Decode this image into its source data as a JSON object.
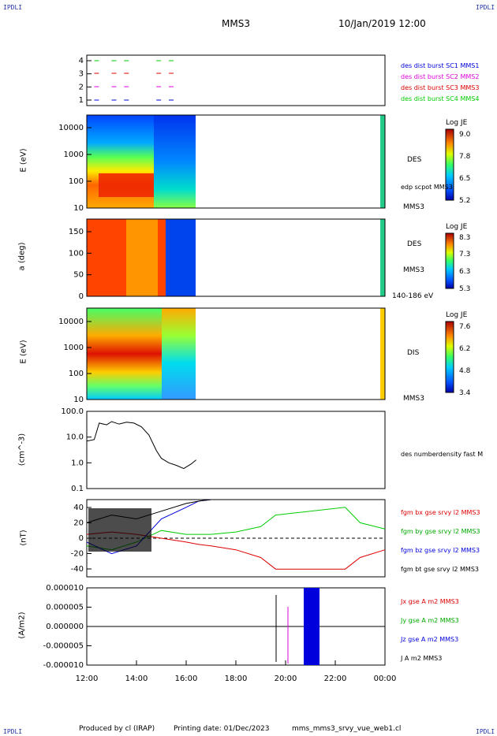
{
  "header": {
    "corner_tl": "IPDLI",
    "corner_tr": "IPDLI",
    "corner_bl": "IPDLI",
    "corner_br": "IPDLI",
    "mission": "MMS3",
    "date": "10/Jan/2019 12:00"
  },
  "footer": {
    "produced": "Produced by cl (IRAP)",
    "printing": "Printing date: 01/Dec/2023",
    "file": "mms_mms3_srvy_vue_web1.cl"
  },
  "time_axis": {
    "ticks": [
      "12:00",
      "14:00",
      "16:00",
      "18:00",
      "20:00",
      "22:00",
      "00:00"
    ],
    "start_hour": 12,
    "end_hour": 24
  },
  "colors": {
    "red": "#dd0000",
    "green": "#00cc00",
    "blue": "#0000dd",
    "magenta": "#dd00dd",
    "black": "#000000"
  },
  "chart_data": [
    {
      "type": "line",
      "name": "burst-availability",
      "yticks": [
        "1",
        "2",
        "3",
        "4"
      ],
      "legend": [
        "des dist burst SC1 MMS1",
        "des dist burst SC2 MMS2",
        "des dist burst SC3 MMS3",
        "des dist burst SC4 MMS4"
      ],
      "legend_colors": [
        "#0000dd",
        "#dd00dd",
        "#dd0000",
        "#00cc00"
      ],
      "segments_hours": [
        [
          12.3,
          12.6
        ],
        [
          13.0,
          13.2
        ],
        [
          13.5,
          13.8
        ],
        [
          14.8,
          15.1
        ],
        [
          15.3,
          15.5
        ]
      ]
    },
    {
      "type": "heatmap",
      "name": "des-energy-spectrogram",
      "ylabel": "E (eV)",
      "yticks": [
        "10",
        "100",
        "1000",
        "10000"
      ],
      "side_label": "DES",
      "side_label2": "edp scpot MMS3",
      "side_label3": "MMS3",
      "colorbar": {
        "title": "Log JE",
        "ticks": [
          "9.0",
          "7.8",
          "6.5",
          "5.2"
        ]
      }
    },
    {
      "type": "heatmap",
      "name": "des-pitch-angle",
      "ylabel": "a (deg)",
      "yticks": [
        "0",
        "50",
        "100",
        "150"
      ],
      "side_label": "DES",
      "side_label2": "MMS3",
      "side_label3": "140-186 eV",
      "colorbar": {
        "title": "Log JE",
        "ticks": [
          "8.3",
          "7.3",
          "6.3",
          "5.3"
        ]
      }
    },
    {
      "type": "heatmap",
      "name": "dis-energy-spectrogram",
      "ylabel": "E (eV)",
      "yticks": [
        "10",
        "100",
        "1000",
        "10000"
      ],
      "side_label": "DIS",
      "side_label2": "MMS3",
      "colorbar": {
        "title": "Log JE",
        "ticks": [
          "7.6",
          "6.2",
          "4.8",
          "3.4"
        ]
      }
    },
    {
      "type": "line",
      "name": "number-density",
      "ylabel": "(cm^-3)",
      "yticks": [
        "0.1",
        "1.0",
        "10.0",
        "100.0"
      ],
      "legend": [
        "des numberdensity fast M"
      ],
      "x_hours": [
        12.0,
        12.3,
        12.5,
        12.8,
        13.0,
        13.3,
        13.6,
        13.9,
        14.2,
        14.5,
        14.8,
        15.0,
        15.3,
        15.6,
        15.9,
        16.2,
        16.4
      ],
      "y_values": [
        7,
        8,
        35,
        30,
        40,
        32,
        38,
        35,
        25,
        12,
        3,
        1.5,
        1.0,
        0.8,
        0.6,
        0.9,
        1.3
      ]
    },
    {
      "type": "line",
      "name": "magnetic-field",
      "ylabel": "(nT)",
      "yticks": [
        "-40",
        "-20",
        "0",
        "20",
        "40"
      ],
      "ylim": [
        -50,
        50
      ],
      "legend": [
        "fgm bx gse srvy l2 MMS3",
        "fgm by gse srvy l2 MMS3",
        "fgm bz gse srvy l2 MMS3",
        "fgm bt gse srvy l2 MMS3"
      ],
      "legend_colors": [
        "#dd0000",
        "#00cc00",
        "#0000dd",
        "#000000"
      ],
      "x_hours": [
        12.0,
        13.0,
        14.0,
        15.0,
        16.0,
        16.5,
        17.0,
        18.0,
        19.0,
        19.6,
        22.4,
        23.0,
        24.0
      ],
      "bx": [
        5,
        8,
        5,
        0,
        -5,
        -8,
        -10,
        -15,
        -25,
        -40,
        -40,
        -25,
        -15
      ],
      "by": [
        -10,
        -15,
        -5,
        10,
        5,
        5,
        5,
        8,
        15,
        30,
        40,
        20,
        12
      ],
      "bz": [
        -5,
        -20,
        -10,
        25,
        40,
        48,
        50,
        50,
        50,
        50,
        50,
        50,
        50
      ],
      "bt": [
        20,
        30,
        25,
        35,
        45,
        48,
        50,
        50,
        50,
        50,
        50,
        50,
        50
      ]
    },
    {
      "type": "line",
      "name": "current-density",
      "ylabel": "(A/m2)",
      "yticks": [
        "-0.000010",
        "-0.000005",
        "0.000000",
        "0.000005",
        "0.000010"
      ],
      "ylim": [
        -1e-05,
        1e-05
      ],
      "legend": [
        "Jx gse A m2 MMS3",
        "Jy gse A m2 MMS3",
        "Jz gse A m2 MMS3",
        "J A m2 MMS3"
      ],
      "legend_colors": [
        "#dd0000",
        "#00cc00",
        "#0000dd",
        "#000000"
      ]
    }
  ]
}
